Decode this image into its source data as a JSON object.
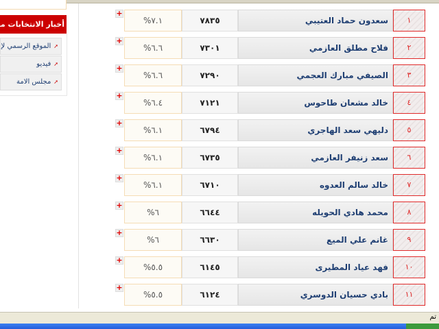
{
  "sidebar": {
    "header": "أخبار الانتخابات من الانترنت",
    "links": [
      {
        "label": "الموقع الرسمي لإدارة الانتخابات"
      },
      {
        "label": "فيديو"
      },
      {
        "label": "مجلس الامة"
      }
    ]
  },
  "results": [
    {
      "rank": "١",
      "name": "سعدون حماد العتيبي",
      "votes": "٧٨٣٥",
      "percent": "%٧.١"
    },
    {
      "rank": "٢",
      "name": "فلاح مطلق العازمي",
      "votes": "٧٣٠١",
      "percent": "%٦.٦"
    },
    {
      "rank": "٣",
      "name": "الصيفي مبارك العجمي",
      "votes": "٧٢٩٠",
      "percent": "%٦.٦"
    },
    {
      "rank": "٤",
      "name": "خالد مشعان طاحوس",
      "votes": "٧١٢١",
      "percent": "%٦.٤"
    },
    {
      "rank": "٥",
      "name": "دليهي سعد الهاجري",
      "votes": "٦٧٩٤",
      "percent": "%٦.١"
    },
    {
      "rank": "٦",
      "name": "سعد زنيفر العازمي",
      "votes": "٦٧٣٥",
      "percent": "%٦.١"
    },
    {
      "rank": "٧",
      "name": "خالد سالم العدوه",
      "votes": "٦٧١٠",
      "percent": "%٦.١"
    },
    {
      "rank": "٨",
      "name": "محمد هادي الحويله",
      "votes": "٦٦٤٤",
      "percent": "%٦"
    },
    {
      "rank": "٩",
      "name": "غانم علي الميع",
      "votes": "٦٦٣٠",
      "percent": "%٦"
    },
    {
      "rank": "١٠",
      "name": "فهد عياد المطيرى",
      "votes": "٦١٤٥",
      "percent": "%٥.٥"
    },
    {
      "rank": "١١",
      "name": "بادي حسيان الدوسري",
      "votes": "٦١٢٤",
      "percent": "%٥.٥"
    }
  ],
  "expand_icon": "plus-icon",
  "statusbar": {
    "text": "تم"
  },
  "colors": {
    "accent": "#cc0000",
    "link": "#1f3f73"
  }
}
